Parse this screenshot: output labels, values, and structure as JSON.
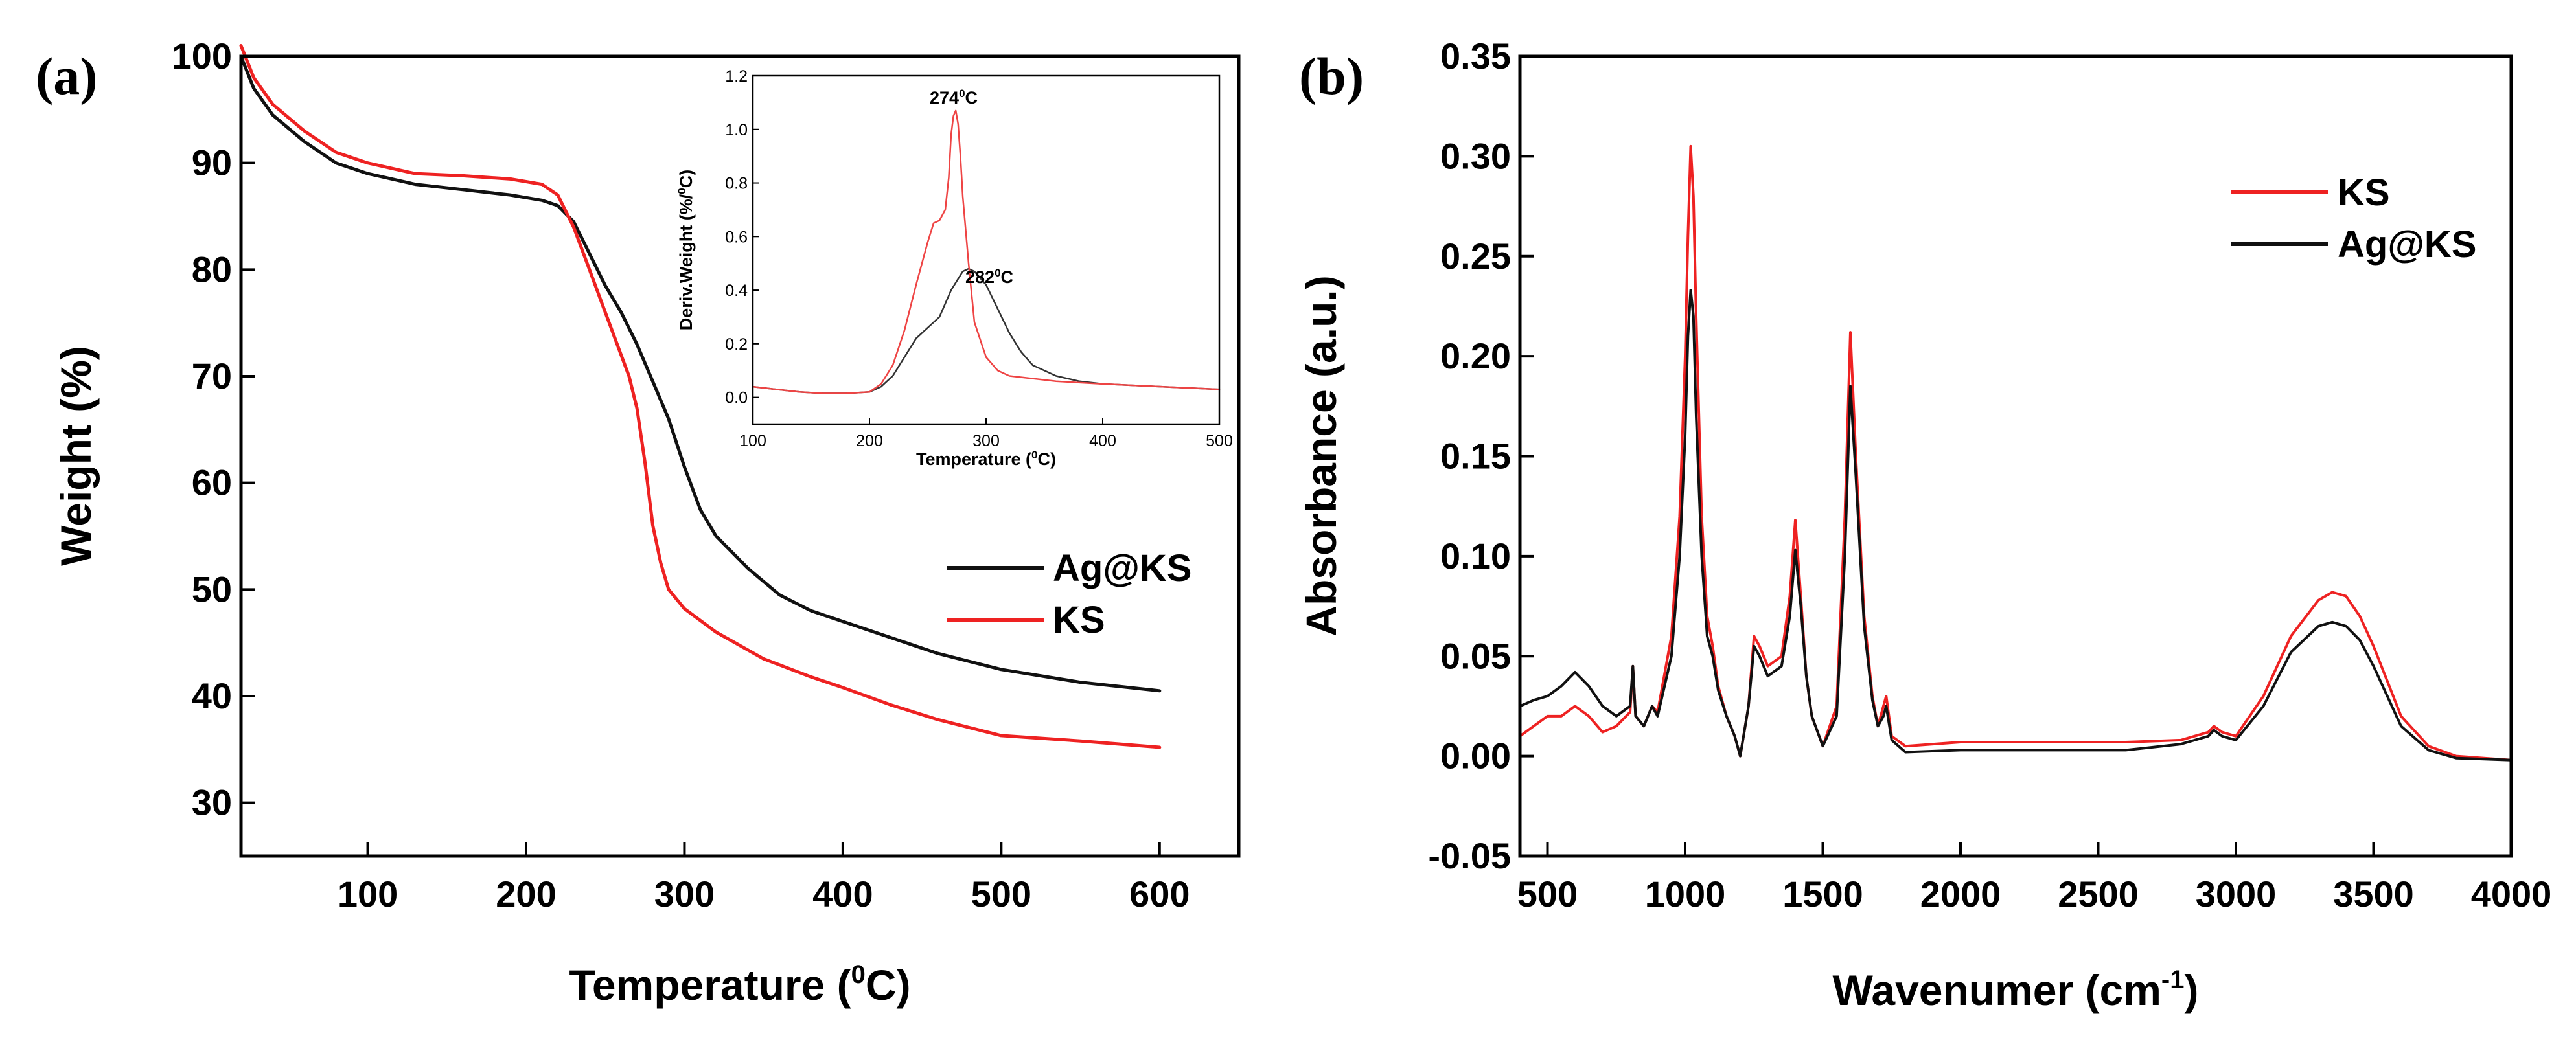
{
  "chart_data": [
    {
      "panel_label": "(a)",
      "type": "line",
      "xlabel": "Temperature (",
      "xlabel_sup": "0",
      "xlabel_tail": "C)",
      "ylabel": "Weight (%)",
      "xlim": [
        20,
        650
      ],
      "ylim": [
        25,
        100
      ],
      "xticks": [
        "100",
        "200",
        "300",
        "400",
        "500",
        "600"
      ],
      "yticks": [
        "30",
        "40",
        "50",
        "60",
        "70",
        "80",
        "90",
        "100"
      ],
      "legend": [
        "Ag@KS",
        "KS"
      ],
      "legend_position": "right-middle",
      "series": [
        {
          "name": "Ag@KS",
          "color": "#111111",
          "x": [
            20,
            28,
            40,
            60,
            80,
            100,
            130,
            160,
            190,
            210,
            220,
            230,
            240,
            250,
            260,
            270,
            280,
            290,
            300,
            310,
            320,
            340,
            360,
            380,
            400,
            430,
            460,
            500,
            550,
            600
          ],
          "y": [
            100,
            97,
            94.5,
            92,
            90,
            89,
            88,
            87.5,
            87,
            86.5,
            86,
            84.5,
            81.5,
            78.5,
            76,
            73,
            69.5,
            66,
            61.5,
            57.5,
            55,
            52,
            49.5,
            48,
            47,
            45.5,
            44,
            42.5,
            41.3,
            40.5
          ]
        },
        {
          "name": "KS",
          "color": "#ee2222",
          "x": [
            20,
            28,
            40,
            60,
            80,
            100,
            130,
            160,
            190,
            210,
            220,
            230,
            240,
            250,
            260,
            265,
            270,
            275,
            280,
            285,
            290,
            300,
            320,
            350,
            380,
            400,
            430,
            460,
            500,
            550,
            600
          ],
          "y": [
            101,
            98,
            95.5,
            93,
            91,
            90,
            89,
            88.8,
            88.5,
            88,
            87,
            84,
            80,
            76,
            72,
            70,
            67,
            62,
            56,
            52.5,
            50,
            48.2,
            46,
            43.5,
            41.8,
            40.8,
            39.2,
            37.8,
            36.3,
            35.8,
            35.2
          ]
        }
      ],
      "inset": {
        "type": "line",
        "xlabel": "Temperature (",
        "xlabel_sup": "0",
        "xlabel_tail": "C)",
        "ylabel": "Deriv.Weight (%/",
        "ylabel_sup": "0",
        "ylabel_tail": "C)",
        "xlim": [
          100,
          500
        ],
        "ylim": [
          -0.1,
          1.2
        ],
        "xticks": [
          "100",
          "200",
          "300",
          "400",
          "500"
        ],
        "yticks": [
          "0.0",
          "0.2",
          "0.4",
          "0.6",
          "0.8",
          "1.0",
          "1.2"
        ],
        "annotations": [
          {
            "text": "274",
            "sup": "0",
            "tail": "C",
            "x": 274,
            "y": 1.07
          },
          {
            "text": "282",
            "sup": "0",
            "tail": "C",
            "x": 282,
            "y": 0.48
          }
        ],
        "series": [
          {
            "name": "Ag@KS",
            "color": "#333333",
            "x": [
              100,
              120,
              140,
              160,
              180,
              200,
              210,
              220,
              230,
              240,
              250,
              260,
              270,
              280,
              285,
              290,
              300,
              310,
              320,
              330,
              340,
              360,
              380,
              400,
              450,
              500
            ],
            "y": [
              0.04,
              0.03,
              0.02,
              0.015,
              0.015,
              0.02,
              0.04,
              0.08,
              0.15,
              0.22,
              0.26,
              0.3,
              0.4,
              0.47,
              0.48,
              0.47,
              0.42,
              0.33,
              0.24,
              0.17,
              0.12,
              0.08,
              0.06,
              0.05,
              0.04,
              0.03
            ]
          },
          {
            "name": "KS",
            "color": "#ee4444",
            "x": [
              100,
              120,
              140,
              160,
              180,
              200,
              210,
              220,
              230,
              240,
              250,
              255,
              260,
              265,
              268,
              270,
              272,
              274,
              276,
              278,
              280,
              285,
              290,
              300,
              310,
              320,
              340,
              360,
              400,
              450,
              500
            ],
            "y": [
              0.04,
              0.03,
              0.02,
              0.015,
              0.015,
              0.02,
              0.05,
              0.12,
              0.25,
              0.42,
              0.58,
              0.65,
              0.66,
              0.7,
              0.82,
              0.98,
              1.05,
              1.07,
              1.02,
              0.9,
              0.75,
              0.5,
              0.28,
              0.15,
              0.1,
              0.08,
              0.07,
              0.06,
              0.05,
              0.04,
              0.03
            ]
          }
        ]
      }
    },
    {
      "panel_label": "(b)",
      "type": "line",
      "xlabel": "Wavenumer (cm",
      "xlabel_sup": "-1",
      "xlabel_tail": ")",
      "ylabel": "Absorbance (a.u.)",
      "xlim": [
        400,
        4000
      ],
      "ylim": [
        -0.05,
        0.35
      ],
      "xticks": [
        "500",
        "1000",
        "1500",
        "2000",
        "2500",
        "3000",
        "3500",
        "4000"
      ],
      "yticks": [
        "-0.05",
        "0.00",
        "0.05",
        "0.10",
        "0.15",
        "0.20",
        "0.25",
        "0.30",
        "0.35"
      ],
      "legend": [
        "KS",
        "Ag@KS"
      ],
      "legend_position": "top-right",
      "series": [
        {
          "name": "KS",
          "color": "#ee2222",
          "x": [
            400,
            450,
            500,
            550,
            600,
            650,
            700,
            750,
            800,
            810,
            820,
            850,
            880,
            900,
            950,
            980,
            1000,
            1010,
            1020,
            1030,
            1040,
            1060,
            1080,
            1100,
            1120,
            1150,
            1180,
            1200,
            1230,
            1250,
            1270,
            1300,
            1350,
            1380,
            1400,
            1420,
            1440,
            1460,
            1500,
            1550,
            1580,
            1600,
            1620,
            1650,
            1680,
            1700,
            1720,
            1730,
            1750,
            1800,
            2000,
            2200,
            2400,
            2600,
            2800,
            2900,
            2920,
            2950,
            3000,
            3100,
            3200,
            3300,
            3350,
            3400,
            3450,
            3500,
            3600,
            3700,
            3800,
            4000
          ],
          "y": [
            0.01,
            0.015,
            0.02,
            0.02,
            0.025,
            0.02,
            0.012,
            0.015,
            0.022,
            0.045,
            0.02,
            0.015,
            0.025,
            0.022,
            0.06,
            0.12,
            0.2,
            0.26,
            0.305,
            0.28,
            0.22,
            0.12,
            0.07,
            0.055,
            0.035,
            0.02,
            0.01,
            0,
            0.025,
            0.06,
            0.055,
            0.045,
            0.05,
            0.08,
            0.118,
            0.08,
            0.04,
            0.02,
            0.005,
            0.025,
            0.12,
            0.212,
            0.15,
            0.07,
            0.03,
            0.015,
            0.025,
            0.03,
            0.01,
            0.005,
            0.007,
            0.007,
            0.007,
            0.007,
            0.008,
            0.012,
            0.015,
            0.012,
            0.01,
            0.03,
            0.06,
            0.078,
            0.082,
            0.08,
            0.07,
            0.055,
            0.02,
            0.005,
            0,
            -0.002
          ]
        },
        {
          "name": "Ag@KS",
          "color": "#111111",
          "x": [
            400,
            450,
            500,
            550,
            600,
            650,
            700,
            750,
            800,
            810,
            820,
            850,
            880,
            900,
            950,
            980,
            1000,
            1010,
            1020,
            1030,
            1040,
            1060,
            1080,
            1100,
            1120,
            1150,
            1180,
            1200,
            1230,
            1250,
            1270,
            1300,
            1350,
            1380,
            1400,
            1420,
            1440,
            1460,
            1500,
            1550,
            1580,
            1600,
            1620,
            1650,
            1680,
            1700,
            1720,
            1730,
            1750,
            1800,
            2000,
            2200,
            2400,
            2600,
            2800,
            2900,
            2920,
            2950,
            3000,
            3100,
            3200,
            3300,
            3350,
            3400,
            3450,
            3500,
            3600,
            3700,
            3800,
            4000
          ],
          "y": [
            0.025,
            0.028,
            0.03,
            0.035,
            0.042,
            0.035,
            0.025,
            0.02,
            0.025,
            0.045,
            0.02,
            0.015,
            0.025,
            0.02,
            0.05,
            0.1,
            0.16,
            0.21,
            0.233,
            0.22,
            0.17,
            0.1,
            0.06,
            0.05,
            0.033,
            0.02,
            0.01,
            0,
            0.025,
            0.055,
            0.05,
            0.04,
            0.045,
            0.07,
            0.103,
            0.075,
            0.04,
            0.02,
            0.005,
            0.02,
            0.1,
            0.185,
            0.14,
            0.065,
            0.028,
            0.015,
            0.02,
            0.025,
            0.008,
            0.002,
            0.003,
            0.003,
            0.003,
            0.003,
            0.006,
            0.01,
            0.013,
            0.01,
            0.008,
            0.025,
            0.052,
            0.065,
            0.067,
            0.065,
            0.058,
            0.045,
            0.015,
            0.003,
            -0.001,
            -0.002
          ]
        }
      ]
    }
  ]
}
